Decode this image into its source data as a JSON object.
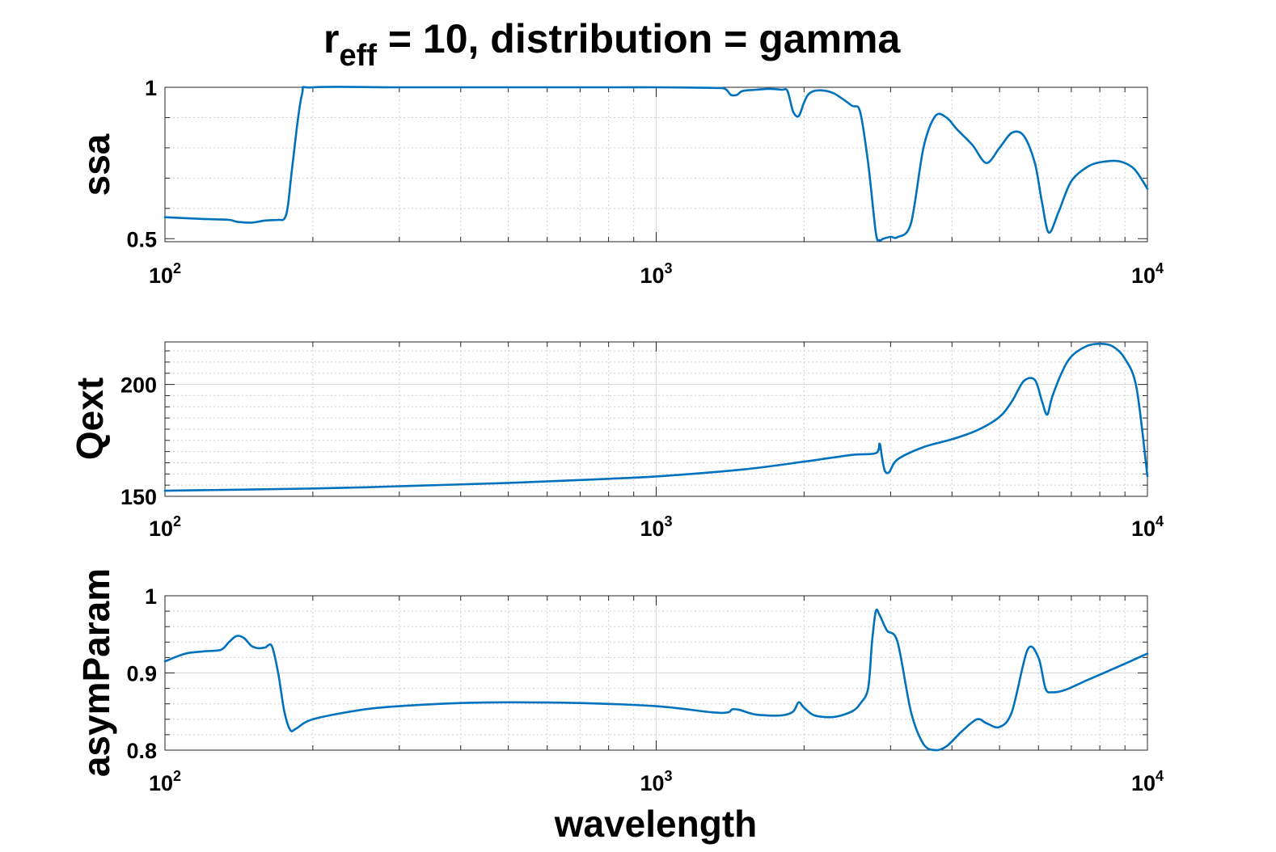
{
  "figure": {
    "title_prefix": "r",
    "title_subscript": "eff",
    "title_suffix": " = 10, distribution = gamma",
    "xlabel": "wavelength",
    "series_color": "#0072BD"
  },
  "chart_data": [
    {
      "type": "line",
      "ylabel": "ssa",
      "xscale": "log",
      "xlim": [
        100,
        10000
      ],
      "ylim": [
        0.49,
        1.0
      ],
      "grid": "on",
      "x_ticks": [
        {
          "base": "10",
          "exp": "2"
        },
        {
          "base": "10",
          "exp": "3"
        },
        {
          "base": "10",
          "exp": "4"
        }
      ],
      "y_ticks": [
        "0.5",
        "1"
      ],
      "y_tick_values": [
        0.5,
        1.0
      ],
      "y_major_grid": [],
      "y_minor_grid": [
        0.6,
        0.7,
        0.8,
        0.9
      ],
      "x": [
        100,
        120,
        135,
        140,
        150,
        160,
        170,
        175,
        178,
        182,
        190,
        200,
        300,
        500,
        800,
        1000,
        1300,
        1380,
        1420,
        1460,
        1500,
        1600,
        1700,
        1800,
        1850,
        1900,
        1950,
        2000,
        2050,
        2150,
        2300,
        2500,
        2600,
        2700,
        2800,
        2850,
        2900,
        3000,
        3100,
        3300,
        3500,
        3700,
        3900,
        4100,
        4400,
        4700,
        5000,
        5300,
        5600,
        5900,
        6100,
        6300,
        6600,
        7000,
        7600,
        8200,
        8800,
        9400,
        10000
      ],
      "values": [
        0.571,
        0.565,
        0.562,
        0.556,
        0.553,
        0.56,
        0.562,
        0.566,
        0.61,
        0.75,
        0.975,
        1.0,
        1.0,
        1.0,
        1.0,
        1.0,
        0.998,
        0.995,
        0.975,
        0.975,
        0.988,
        0.992,
        0.995,
        0.992,
        0.988,
        0.92,
        0.905,
        0.95,
        0.98,
        0.99,
        0.98,
        0.94,
        0.92,
        0.75,
        0.52,
        0.495,
        0.5,
        0.506,
        0.505,
        0.55,
        0.8,
        0.905,
        0.9,
        0.86,
        0.81,
        0.75,
        0.8,
        0.85,
        0.84,
        0.75,
        0.62,
        0.52,
        0.59,
        0.69,
        0.74,
        0.755,
        0.755,
        0.73,
        0.665
      ]
    },
    {
      "type": "line",
      "ylabel": "Qext",
      "xscale": "log",
      "xlim": [
        100,
        10000
      ],
      "ylim": [
        150,
        219
      ],
      "grid": "on",
      "x_ticks": [
        {
          "base": "10",
          "exp": "2"
        },
        {
          "base": "10",
          "exp": "3"
        },
        {
          "base": "10",
          "exp": "4"
        }
      ],
      "y_ticks": [
        "150",
        "200"
      ],
      "y_tick_values": [
        150,
        200
      ],
      "y_major_grid": [
        200
      ],
      "y_minor_grid": [
        155,
        160,
        165,
        170,
        175,
        180,
        185,
        190,
        195,
        205,
        210,
        215
      ],
      "x": [
        100,
        200,
        300,
        500,
        700,
        1000,
        1500,
        2000,
        2500,
        2800,
        2850,
        2880,
        2920,
        2980,
        3100,
        3500,
        4000,
        4500,
        5000,
        5300,
        5600,
        5900,
        6100,
        6250,
        6400,
        6700,
        7000,
        7500,
        8000,
        8500,
        9000,
        9500,
        10000
      ],
      "values": [
        152.5,
        153.5,
        154.5,
        156,
        157.3,
        158.9,
        162,
        165.5,
        168.5,
        169.3,
        173.5,
        167.8,
        161.5,
        160.8,
        166.5,
        172,
        175.5,
        179.5,
        185.5,
        192.5,
        201.5,
        202,
        192.5,
        186.5,
        194.5,
        205.5,
        212.5,
        217,
        218.2,
        217,
        211.5,
        198.5,
        159
      ]
    },
    {
      "type": "line",
      "ylabel": "asymParam",
      "xscale": "log",
      "xlim": [
        100,
        10000
      ],
      "ylim": [
        0.8,
        1.0
      ],
      "grid": "on",
      "x_ticks": [
        {
          "base": "10",
          "exp": "2"
        },
        {
          "base": "10",
          "exp": "3"
        },
        {
          "base": "10",
          "exp": "4"
        }
      ],
      "y_ticks": [
        "0.8",
        "0.9",
        "1"
      ],
      "y_tick_values": [
        0.8,
        0.9,
        1.0
      ],
      "y_major_grid": [
        0.9
      ],
      "y_minor_grid": [
        0.82,
        0.84,
        0.86,
        0.88,
        0.92,
        0.94,
        0.96,
        0.98
      ],
      "x": [
        100,
        110,
        120,
        130,
        135,
        140,
        145,
        150,
        155,
        160,
        165,
        170,
        175,
        180,
        185,
        200,
        250,
        300,
        400,
        500,
        700,
        1000,
        1300,
        1400,
        1430,
        1480,
        1600,
        1800,
        1900,
        1950,
        2000,
        2100,
        2300,
        2500,
        2600,
        2700,
        2750,
        2800,
        2850,
        2950,
        3100,
        3300,
        3500,
        3700,
        3900,
        4200,
        4500,
        4700,
        5000,
        5300,
        5700,
        6000,
        6200,
        6400,
        6800,
        7500,
        8500,
        10000
      ],
      "values": [
        0.915,
        0.925,
        0.928,
        0.93,
        0.94,
        0.948,
        0.945,
        0.935,
        0.932,
        0.933,
        0.935,
        0.9,
        0.85,
        0.826,
        0.828,
        0.84,
        0.852,
        0.857,
        0.861,
        0.862,
        0.861,
        0.857,
        0.849,
        0.849,
        0.853,
        0.852,
        0.846,
        0.845,
        0.85,
        0.862,
        0.855,
        0.845,
        0.843,
        0.85,
        0.86,
        0.88,
        0.94,
        0.98,
        0.975,
        0.955,
        0.94,
        0.85,
        0.808,
        0.8,
        0.805,
        0.825,
        0.84,
        0.835,
        0.83,
        0.85,
        0.93,
        0.92,
        0.88,
        0.875,
        0.878,
        0.89,
        0.905,
        0.925
      ]
    }
  ]
}
